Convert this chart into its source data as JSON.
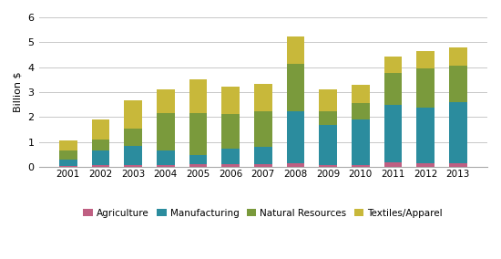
{
  "years": [
    "2001",
    "2002",
    "2003",
    "2004",
    "2005",
    "2006",
    "2007",
    "2008",
    "2009",
    "2010",
    "2011",
    "2012",
    "2013"
  ],
  "agriculture": [
    0.04,
    0.08,
    0.08,
    0.08,
    0.12,
    0.12,
    0.12,
    0.15,
    0.07,
    0.08,
    0.18,
    0.15,
    0.15
  ],
  "manufacturing": [
    0.27,
    0.58,
    0.78,
    0.6,
    0.35,
    0.62,
    0.68,
    2.1,
    1.6,
    1.82,
    2.3,
    2.22,
    2.45
  ],
  "natural_resources": [
    0.37,
    0.44,
    0.68,
    1.5,
    1.68,
    1.38,
    1.45,
    1.88,
    0.58,
    0.68,
    1.28,
    1.58,
    1.48
  ],
  "textiles_apparel": [
    0.37,
    0.82,
    1.12,
    0.94,
    1.35,
    1.12,
    1.08,
    1.12,
    0.85,
    0.72,
    0.68,
    0.68,
    0.72
  ],
  "colors": {
    "agriculture": "#bf5f82",
    "manufacturing": "#2b8c9e",
    "natural_resources": "#7a9a3c",
    "textiles_apparel": "#c8b83a"
  },
  "ylabel": "Billion $",
  "ylim": [
    0,
    6
  ],
  "yticks": [
    0,
    1,
    2,
    3,
    4,
    5,
    6
  ],
  "legend_labels": [
    "Agriculture",
    "Manufacturing",
    "Natural Resources",
    "Textiles/Apparel"
  ],
  "background_color": "#ffffff",
  "grid_color": "#c8c8c8"
}
